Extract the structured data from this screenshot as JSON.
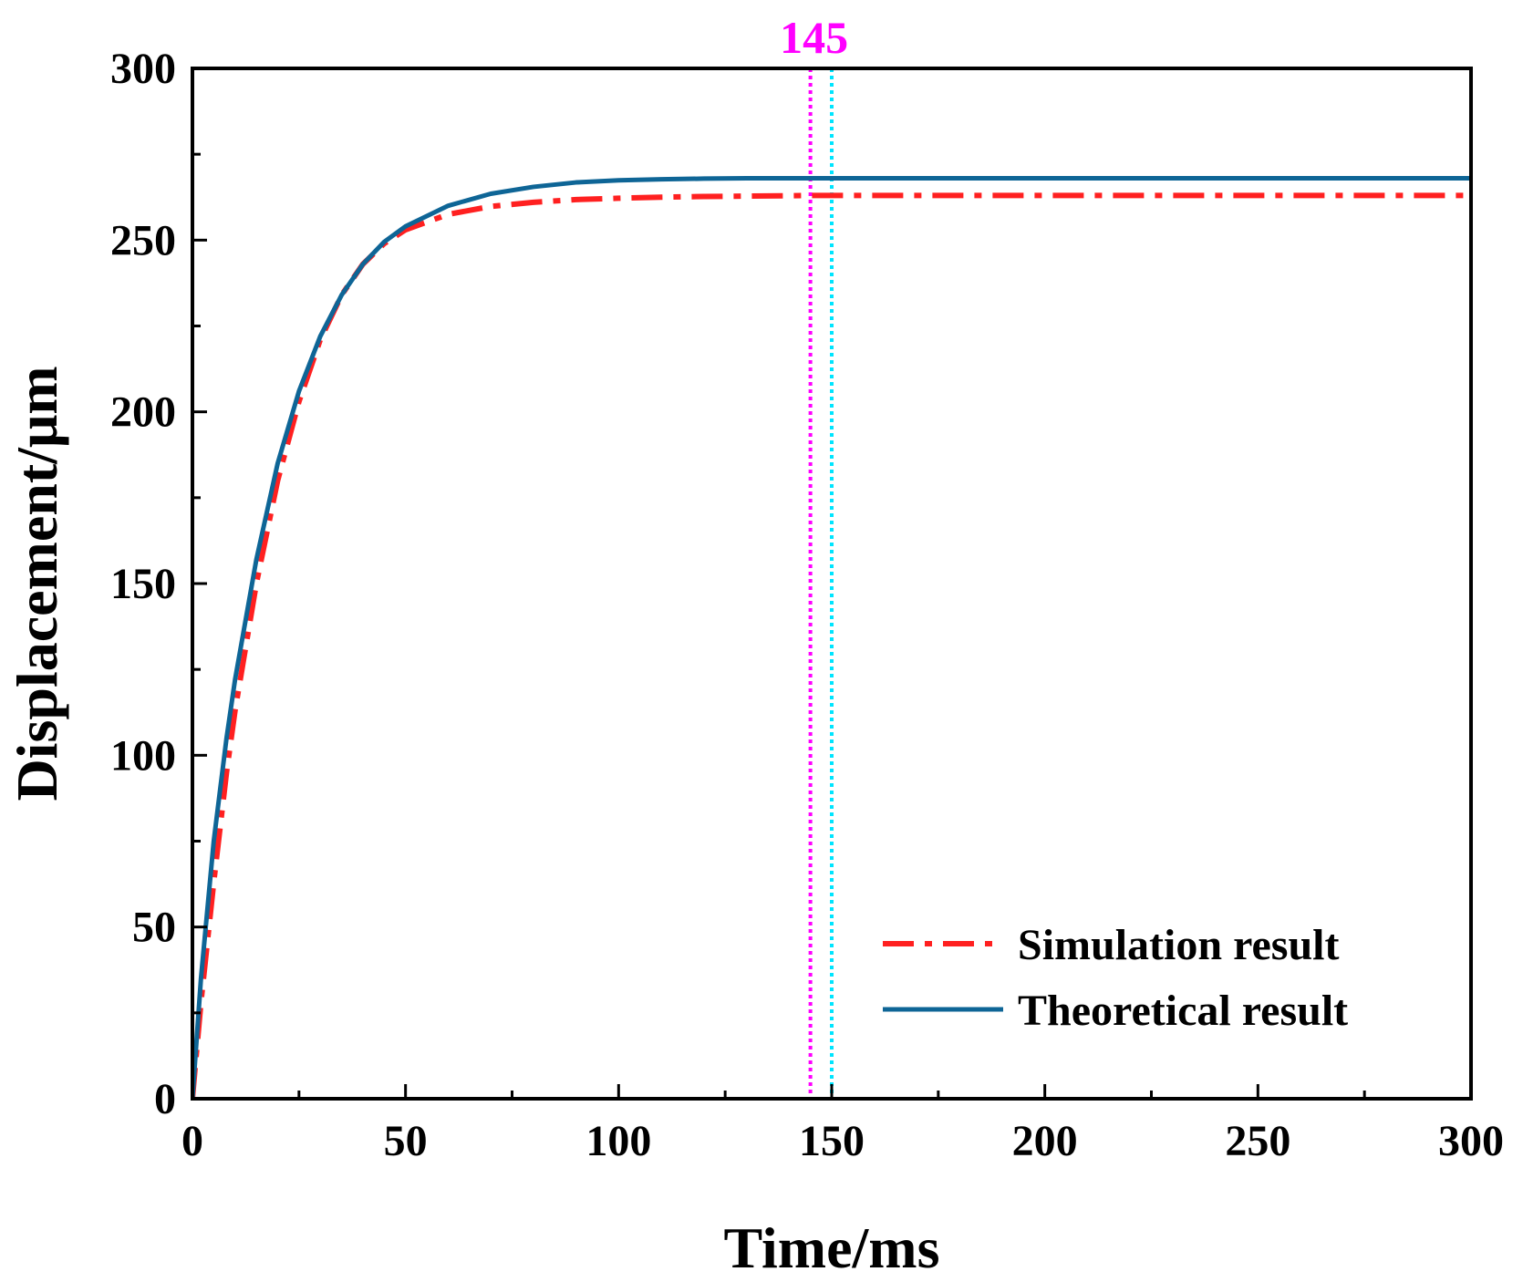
{
  "chart_data": {
    "type": "line",
    "xlabel": "Time/ms",
    "ylabel": "Displacement/μm",
    "xlim": [
      0,
      300
    ],
    "ylim": [
      0,
      300
    ],
    "xticks": [
      0,
      50,
      100,
      150,
      200,
      250,
      300
    ],
    "yticks": [
      0,
      50,
      100,
      150,
      200,
      250,
      300
    ],
    "x_tick_labels": [
      "0",
      "50",
      "100",
      "150",
      "200",
      "250",
      "300"
    ],
    "y_tick_labels": [
      "0",
      "50",
      "100",
      "150",
      "200",
      "250",
      "300"
    ],
    "x_minor_step": 25,
    "y_minor_step": 25,
    "grid": false,
    "legend_position": "bottom-right",
    "series": [
      {
        "name": "Simulation result",
        "style": "dash-dot",
        "color": "#ff2020",
        "x": [
          0,
          2,
          5,
          8,
          10,
          15,
          20,
          25,
          30,
          35,
          40,
          45,
          50,
          60,
          70,
          80,
          90,
          100,
          110,
          120,
          130,
          145,
          150,
          200,
          250,
          300
        ],
        "y": [
          0,
          28,
          63,
          95,
          113,
          150,
          180,
          203,
          221,
          234,
          243,
          249,
          253,
          257.5,
          259.8,
          261,
          261.8,
          262.2,
          262.5,
          262.7,
          262.8,
          263,
          263,
          263,
          263,
          263
        ]
      },
      {
        "name": "Theoretical result",
        "style": "solid",
        "color": "#0e6596",
        "x": [
          0,
          2,
          5,
          8,
          10,
          15,
          20,
          25,
          30,
          35,
          40,
          45,
          50,
          60,
          70,
          80,
          90,
          100,
          110,
          120,
          130,
          145,
          150,
          200,
          250,
          300
        ],
        "y": [
          0,
          35,
          75,
          105,
          122,
          157,
          185,
          206,
          222,
          234,
          243,
          249.5,
          254,
          260,
          263.5,
          265.5,
          266.8,
          267.4,
          267.7,
          267.9,
          268,
          268,
          268,
          268,
          268,
          268
        ]
      }
    ],
    "annotations": [
      {
        "label": "145",
        "x": 145,
        "color": "#ff00ff",
        "style": "dotted"
      },
      {
        "label": "",
        "x": 150,
        "color": "#00e5ff",
        "style": "dotted"
      }
    ]
  }
}
